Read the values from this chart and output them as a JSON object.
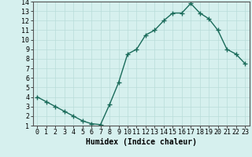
{
  "x": [
    0,
    1,
    2,
    3,
    4,
    5,
    6,
    7,
    8,
    9,
    10,
    11,
    12,
    13,
    14,
    15,
    16,
    17,
    18,
    19,
    20,
    21,
    22,
    23
  ],
  "y": [
    4.0,
    3.5,
    3.0,
    2.5,
    2.0,
    1.5,
    1.2,
    1.1,
    3.2,
    5.5,
    8.5,
    9.0,
    10.5,
    11.0,
    12.0,
    12.8,
    12.8,
    13.8,
    12.8,
    12.2,
    11.0,
    9.0,
    8.5,
    7.5
  ],
  "line_color": "#1a6b5a",
  "marker": "+",
  "marker_size": 4,
  "xlabel": "Humidex (Indice chaleur)",
  "xlim": [
    -0.5,
    23.5
  ],
  "ylim": [
    1,
    14
  ],
  "yticks": [
    1,
    2,
    3,
    4,
    5,
    6,
    7,
    8,
    9,
    10,
    11,
    12,
    13,
    14
  ],
  "xticks": [
    0,
    1,
    2,
    3,
    4,
    5,
    6,
    7,
    8,
    9,
    10,
    11,
    12,
    13,
    14,
    15,
    16,
    17,
    18,
    19,
    20,
    21,
    22,
    23
  ],
  "background_color": "#d6f0ee",
  "grid_color": "#b8ddd9",
  "xlabel_fontsize": 7,
  "tick_fontsize": 6,
  "linewidth": 1.0,
  "marker_color": "#1a6b5a",
  "marker_size_pts": 4,
  "spine_color": "#555555"
}
